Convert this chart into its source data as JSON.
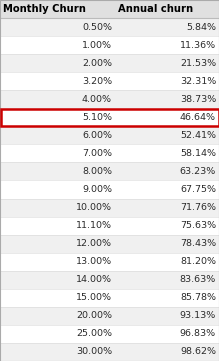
{
  "headers": [
    "Monthly Churn",
    "Annual churn"
  ],
  "rows": [
    [
      "0.50%",
      "5.84%"
    ],
    [
      "1.00%",
      "11.36%"
    ],
    [
      "2.00%",
      "21.53%"
    ],
    [
      "3.20%",
      "32.31%"
    ],
    [
      "4.00%",
      "38.73%"
    ],
    [
      "5.10%",
      "46.64%"
    ],
    [
      "6.00%",
      "52.41%"
    ],
    [
      "7.00%",
      "58.14%"
    ],
    [
      "8.00%",
      "63.23%"
    ],
    [
      "9.00%",
      "67.75%"
    ],
    [
      "10.00%",
      "71.76%"
    ],
    [
      "11.10%",
      "75.63%"
    ],
    [
      "12.00%",
      "78.43%"
    ],
    [
      "13.00%",
      "81.20%"
    ],
    [
      "14.00%",
      "83.63%"
    ],
    [
      "15.00%",
      "85.78%"
    ],
    [
      "20.00%",
      "93.13%"
    ],
    [
      "25.00%",
      "96.83%"
    ],
    [
      "30.00%",
      "98.62%"
    ]
  ],
  "highlight_row": 5,
  "highlight_color": "#cc0000",
  "header_bg": "#e0e0e0",
  "row_bg_odd": "#f0f0f0",
  "row_bg_even": "#ffffff",
  "text_color": "#2a2a2a",
  "header_text_color": "#000000",
  "fig_width": 2.19,
  "fig_height": 3.61,
  "dpi": 100,
  "font_size": 6.8,
  "header_font_size": 7.2
}
